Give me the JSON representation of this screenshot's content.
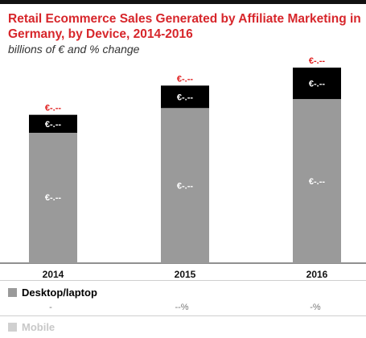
{
  "title": "Retail Ecommerce Sales Generated by Affiliate Marketing in Germany, by Device, 2014-2016",
  "subtitle": "billions of € and % change",
  "colors": {
    "title": "#d7262b",
    "change_label": "#e02020",
    "desktop": "#9a9a9a",
    "mobile": "#000000",
    "mobile_legend": "#d0d0d0"
  },
  "chart_data": {
    "type": "bar",
    "stacked": true,
    "categories": [
      "2014",
      "2015",
      "2016"
    ],
    "series": [
      {
        "name": "Desktop/laptop",
        "values": [
          5.8,
          6.9,
          7.3
        ]
      },
      {
        "name": "Mobile",
        "values": [
          0.8,
          1.0,
          1.4
        ]
      }
    ],
    "bar_labels": {
      "desktop": [
        "€-.--",
        "€-.--",
        "€-.--"
      ],
      "mobile": [
        "€-.--",
        "€-.--",
        "€-.--"
      ],
      "total_change": [
        "€-.--",
        "€-.--",
        "€-.--"
      ]
    },
    "ylim": [
      0,
      8.7
    ],
    "grid": false
  },
  "legend": {
    "desktop_label": "Desktop/laptop",
    "desktop_changes": [
      "-",
      "--%",
      "-%"
    ],
    "mobile_label": "Mobile"
  }
}
